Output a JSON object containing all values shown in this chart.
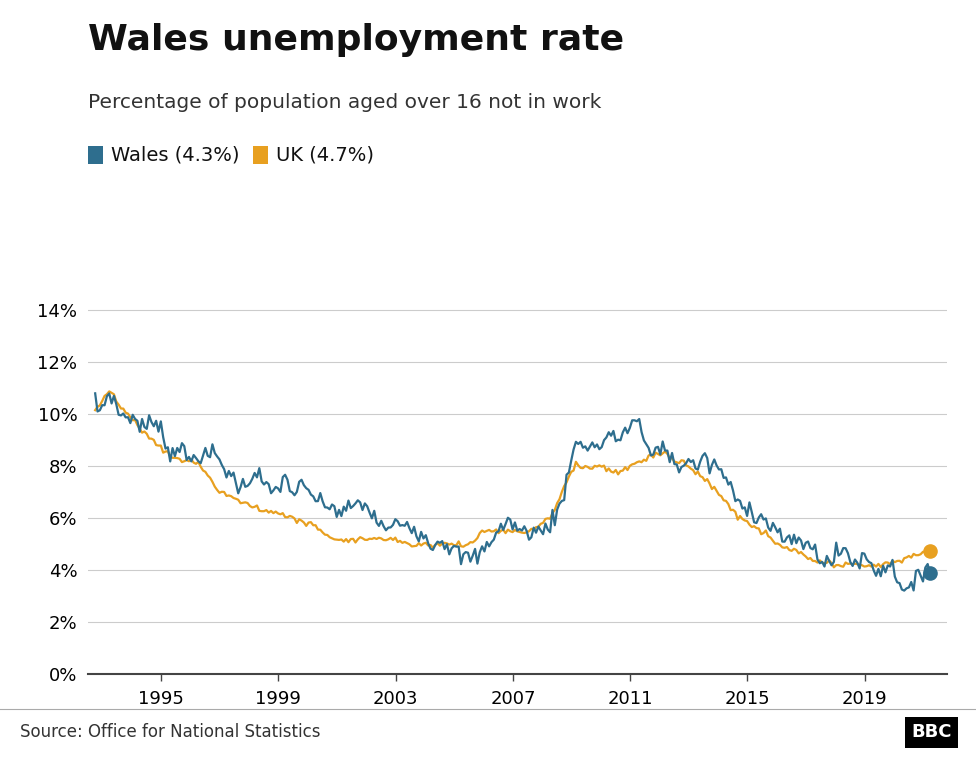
{
  "title": "Wales unemployment rate",
  "subtitle": "Percentage of population aged over 16 not in work",
  "legend_wales": "Wales (4.3%)",
  "legend_uk": "UK (4.7%)",
  "wales_color": "#2e6e8e",
  "uk_color": "#e8a020",
  "source_text": "Source: Office for National Statistics",
  "ytick_values": [
    0,
    2,
    4,
    6,
    8,
    10,
    12,
    14
  ],
  "xtick_labels": [
    "1995",
    "1999",
    "2003",
    "2007",
    "2011",
    "2015",
    "2019"
  ],
  "xtick_positions": [
    1995,
    1999,
    2003,
    2007,
    2011,
    2015,
    2019
  ],
  "xlim": [
    1992.5,
    2021.8
  ],
  "ylim": [
    0,
    15.5
  ],
  "background_color": "#ffffff"
}
